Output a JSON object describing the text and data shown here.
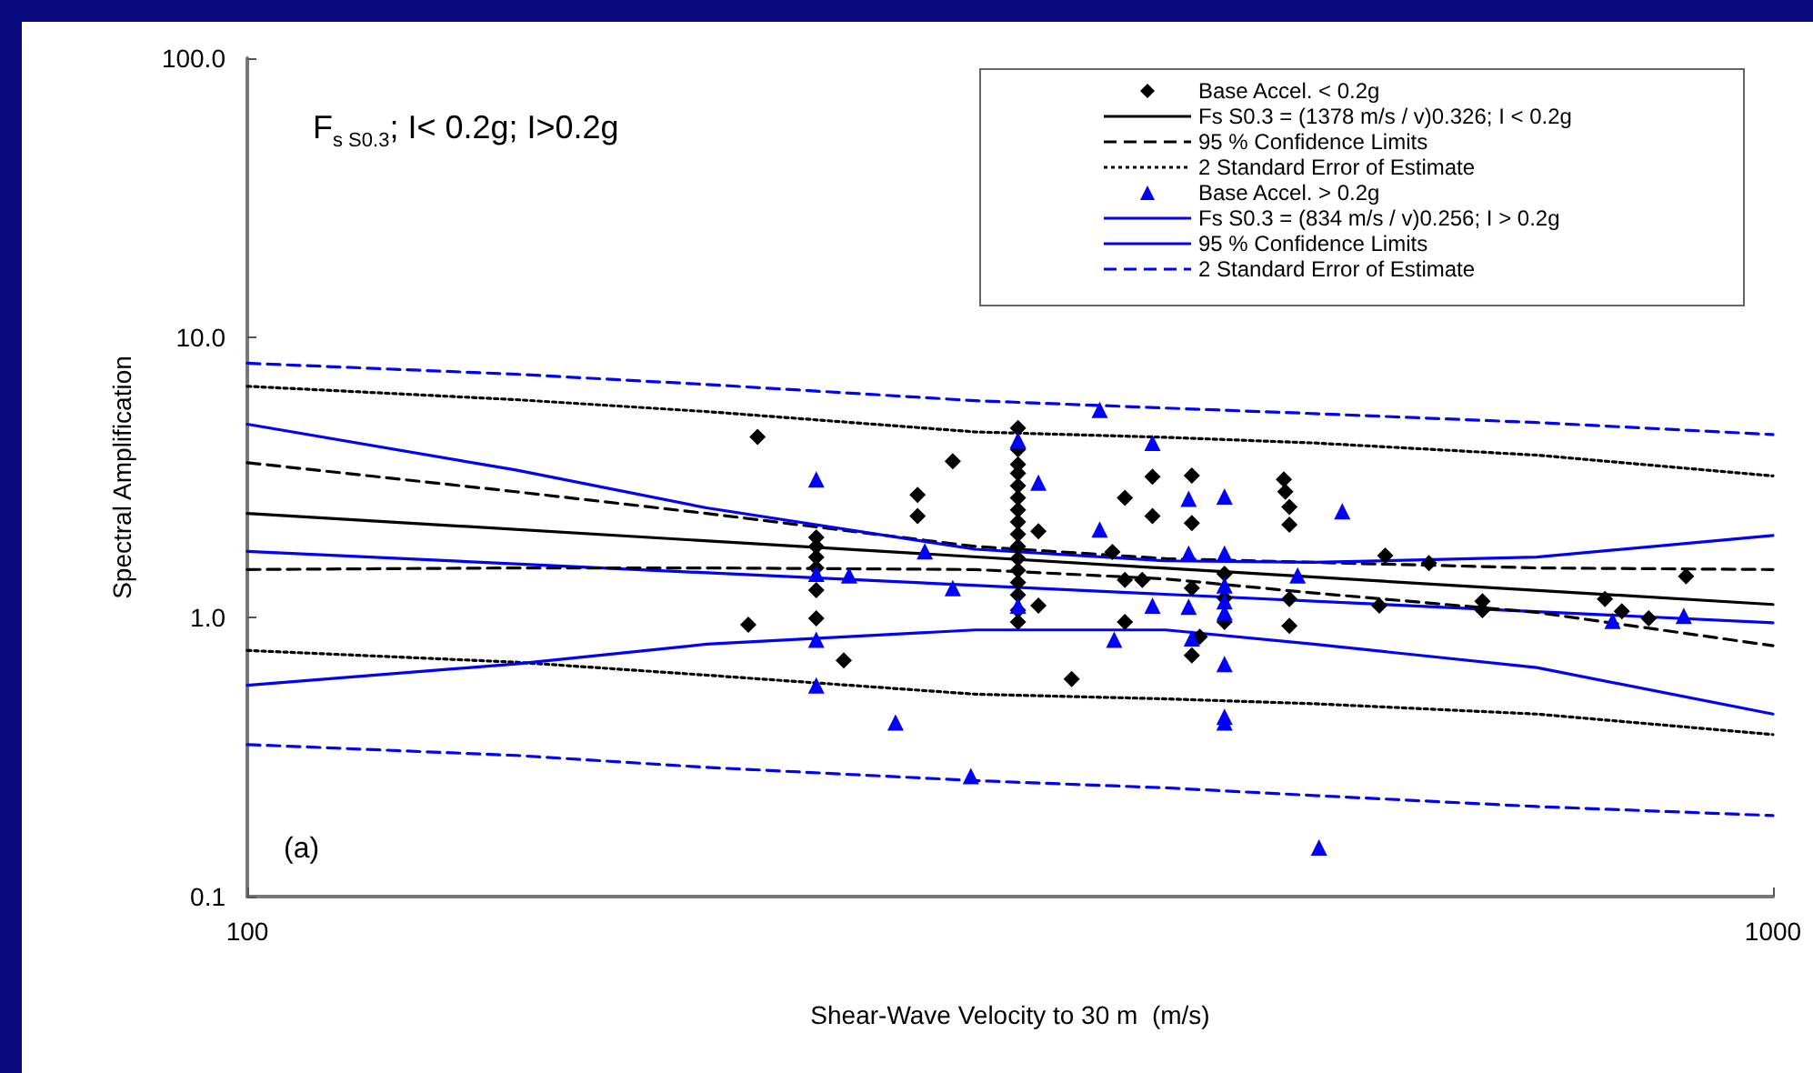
{
  "chart_data": {
    "type": "scatter",
    "title": "F$_{s S0.3}$; I< 0.2g; I>0.2g",
    "xlabel": "Shear-Wave Velocity to 30 m  (m/s)",
    "ylabel": "Spectral Amplification",
    "annotations": [
      "(a)"
    ],
    "log": "xy",
    "xlim": [
      100,
      1000
    ],
    "xticks": [
      100,
      1000
    ],
    "ylim": [
      0.1,
      100
    ],
    "yticks": [
      {
        "value": 0.1,
        "label": "0.1"
      },
      {
        "value": 1,
        "label": "1.0"
      },
      {
        "value": 10,
        "label": "10.0"
      },
      {
        "value": 100,
        "label": "100.0"
      }
    ],
    "grid": false,
    "legend": "top right",
    "series": [
      {
        "name": "Base Accel. < 0.2g",
        "marker": "diamond",
        "color": "#000000",
        "x": [
          216,
          213,
          236,
          236,
          236,
          236,
          236,
          236,
          246,
          275,
          275,
          290,
          320,
          320,
          320,
          320,
          320,
          320,
          320,
          320,
          320,
          320,
          320,
          320,
          320,
          320,
          320,
          320,
          330,
          330,
          347,
          369,
          376,
          376,
          386,
          376,
          392,
          392,
          416,
          416,
          416,
          421,
          416,
          437,
          437,
          437,
          478,
          479,
          482,
          482,
          482,
          482,
          557,
          595,
          552,
          645,
          645,
          776,
          796,
          829,
          877
        ],
        "values": [
          4.41,
          0.94,
          1.93,
          1.79,
          1.64,
          1.5,
          1.25,
          0.99,
          0.7,
          2.74,
          2.3,
          3.61,
          4.75,
          3.98,
          3.52,
          3.27,
          2.95,
          2.67,
          2.42,
          2.19,
          1.98,
          1.79,
          1.62,
          1.47,
          1.33,
          1.2,
          1.06,
          0.96,
          2.03,
          1.1,
          0.6,
          1.71,
          2.67,
          1.36,
          1.36,
          0.96,
          3.18,
          2.3,
          3.21,
          2.17,
          1.27,
          0.85,
          0.73,
          1.43,
          1.17,
          0.96,
          3.11,
          2.81,
          2.48,
          2.14,
          1.16,
          0.93,
          1.66,
          1.56,
          1.1,
          1.14,
          1.06,
          1.16,
          1.05,
          0.99,
          1.4
        ]
      },
      {
        "name": "Fs S0.3 = (1378 m/s / v)0.326; I < 0.2g",
        "type": "line",
        "line_style": "solid",
        "color": "#000000",
        "x": [
          100,
          1000
        ],
        "values": [
          2.35,
          1.11
        ]
      },
      {
        "name": "95 % Confidence Limits",
        "type": "line",
        "line_style": "dashed",
        "color": "#000000",
        "x": [
          100,
          150,
          200,
          300,
          400,
          500,
          700,
          1000
        ],
        "values": [
          3.57,
          2.81,
          2.35,
          1.79,
          1.62,
          1.57,
          1.5,
          1.48
        ]
      },
      {
        "name": "2 Standard Error of Estimate",
        "type": "line",
        "line_style": "dotted",
        "color": "#000000",
        "x": [
          100,
          150,
          200,
          300,
          400,
          500,
          700,
          1000
        ],
        "values": [
          6.7,
          6.0,
          5.44,
          4.6,
          4.4,
          4.2,
          3.8,
          3.2
        ]
      },
      {
        "name": "Base Accel. > 0.2g",
        "marker": "triangle",
        "color": "#0000ff",
        "x": [
          236,
          236,
          248,
          236,
          236,
          278,
          290,
          266,
          298,
          320,
          320,
          330,
          362,
          392,
          362,
          414,
          437,
          414,
          437,
          437,
          437,
          437,
          414,
          392,
          370,
          416,
          437,
          437,
          437,
          488,
          522,
          504,
          785,
          874
        ],
        "values": [
          3.11,
          1.43,
          1.41,
          0.83,
          0.57,
          1.72,
          1.27,
          0.42,
          0.27,
          4.3,
          1.1,
          3.03,
          5.52,
          4.2,
          2.06,
          2.65,
          2.7,
          1.69,
          1.69,
          1.3,
          1.14,
          1.04,
          1.09,
          1.1,
          0.83,
          0.84,
          0.68,
          0.44,
          0.42,
          1.41,
          2.39,
          0.15,
          0.97,
          1.01
        ]
      },
      {
        "name": "Fs S0.3 = (834 m/s / v)0.256; I > 0.2g",
        "type": "line",
        "line_style": "solid",
        "color": "#0000ff",
        "x": [
          100,
          1000
        ],
        "values": [
          1.72,
          0.955
        ]
      },
      {
        "name": "95 % Confidence Limits",
        "type": "line",
        "line_style": "solid",
        "color": "#0000ff",
        "x": [
          100,
          150,
          200,
          300,
          400,
          500,
          700,
          1000
        ],
        "values": [
          4.9,
          3.36,
          2.46,
          1.75,
          1.59,
          1.57,
          1.64,
          1.96
        ]
      },
      {
        "name": "2 Standard Error of Estimate",
        "type": "line",
        "line_style": "dashed",
        "color": "#0000ff",
        "x": [
          100,
          150,
          200,
          300,
          400,
          500,
          700,
          1000
        ],
        "values": [
          8.1,
          7.4,
          6.8,
          5.95,
          5.6,
          5.35,
          4.97,
          4.5
        ]
      },
      {
        "type": "line",
        "line_style": "dashed",
        "color": "#000000",
        "x": [
          100,
          150,
          200,
          300,
          400,
          500,
          700,
          1000
        ],
        "values": [
          1.48,
          1.5,
          1.5,
          1.48,
          1.37,
          1.22,
          1.04,
          0.79
        ]
      },
      {
        "type": "line",
        "line_style": "dotted",
        "color": "#000000",
        "x": [
          100,
          150,
          200,
          300,
          400,
          500,
          700,
          1000
        ],
        "values": [
          0.76,
          0.69,
          0.62,
          0.53,
          0.51,
          0.49,
          0.45,
          0.38
        ]
      },
      {
        "type": "line",
        "line_style": "solid",
        "color": "#0000ff",
        "x": [
          100,
          150,
          200,
          300,
          400,
          500,
          700,
          1000
        ],
        "values": [
          0.57,
          0.68,
          0.8,
          0.9,
          0.9,
          0.8,
          0.66,
          0.45
        ]
      },
      {
        "type": "line",
        "line_style": "dashed",
        "color": "#0000ff",
        "x": [
          100,
          150,
          200,
          300,
          400,
          500,
          700,
          1000
        ],
        "values": [
          0.35,
          0.32,
          0.29,
          0.26,
          0.245,
          0.23,
          0.21,
          0.195
        ]
      }
    ]
  }
}
